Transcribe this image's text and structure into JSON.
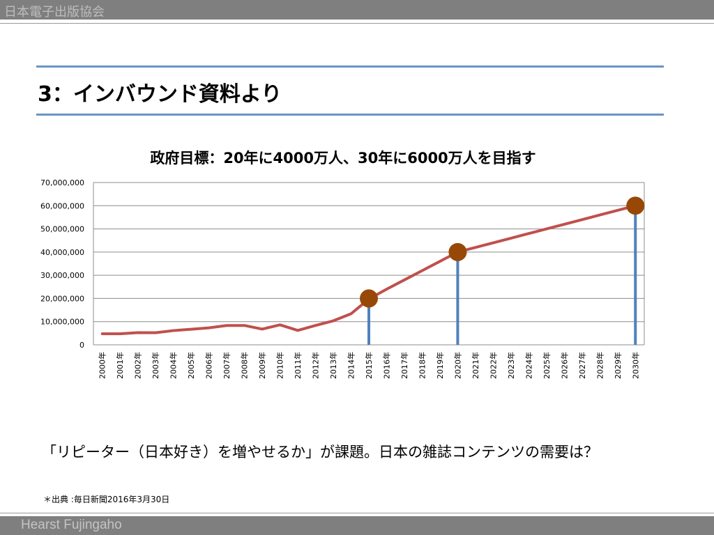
{
  "header": {
    "brand": "日本電子出版協会"
  },
  "slide": {
    "title": "3：インバウンド資料より"
  },
  "chart_data": {
    "type": "line",
    "title": "政府目標：20年に4000万人、30年に6000万人を目指す",
    "xlabel": "",
    "ylabel": "",
    "ylim": [
      0,
      70000000
    ],
    "yticks": [
      0,
      10000000,
      20000000,
      30000000,
      40000000,
      50000000,
      60000000,
      70000000
    ],
    "ytick_labels": [
      "0",
      "10,000,000",
      "20,000,000",
      "30,000,000",
      "40,000,000",
      "50,000,000",
      "60,000,000",
      "70,000,000"
    ],
    "grid": true,
    "categories": [
      "2000年",
      "2001年",
      "2002年",
      "2003年",
      "2004年",
      "2005年",
      "2006年",
      "2007年",
      "2008年",
      "2009年",
      "2010年",
      "2011年",
      "2012年",
      "2013年",
      "2014年",
      "2015年",
      "2016年",
      "2017年",
      "2018年",
      "2019年",
      "2020年",
      "2021年",
      "2022年",
      "2023年",
      "2024年",
      "2025年",
      "2026年",
      "2027年",
      "2028年",
      "2029年",
      "2030年"
    ],
    "series": [
      {
        "color": "#c0504d",
        "values": [
          4760000,
          4770000,
          5240000,
          5210000,
          6140000,
          6730000,
          7330000,
          8350000,
          8350000,
          6790000,
          8610000,
          6220000,
          8360000,
          10360000,
          13410000,
          19740000,
          24000000,
          28000000,
          32000000,
          36000000,
          40000000,
          42000000,
          44000000,
          46000000,
          48000000,
          50000000,
          52000000,
          54000000,
          56000000,
          58000000,
          60000000
        ]
      }
    ],
    "milestones": [
      {
        "category": "2015年",
        "value": 20000000
      },
      {
        "category": "2020年",
        "value": 40000000
      },
      {
        "category": "2030年",
        "value": 60000000
      }
    ],
    "marker_color": "#984806",
    "drop_line_color": "#4f81bd"
  },
  "caption": "「リピーター（日本好き）を増やせるか」が課題。日本の雑誌コンテンツの需要は？",
  "source": "＊出典 :毎日新聞2016年3月30日",
  "footer": {
    "brand": "Hearst Fujingaho"
  }
}
